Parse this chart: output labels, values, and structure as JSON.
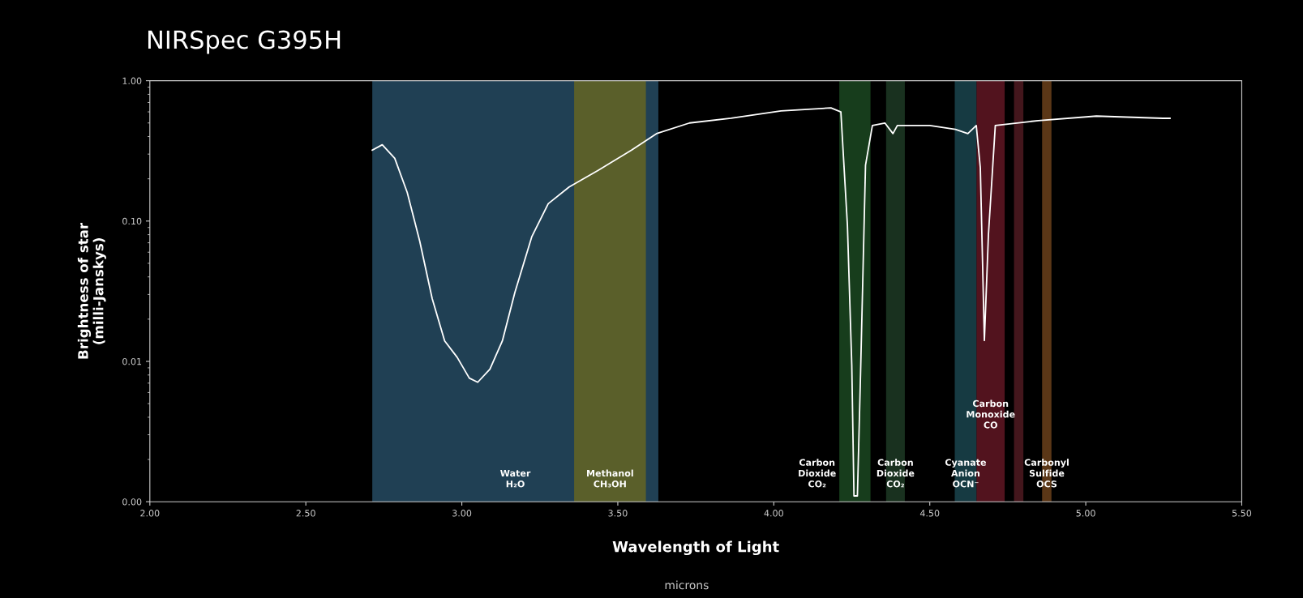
{
  "chart_data": {
    "type": "line",
    "title": "NIRSpec G395H",
    "xlabel": "Wavelength of Light",
    "ylabel": "Brightness of star\n(milli-Janskys)",
    "log": "y",
    "grid": false,
    "legend": false,
    "xlim": [
      2.0,
      5.5
    ],
    "xticks": [
      {
        "value": 2.0,
        "label": "2.00"
      },
      {
        "value": 2.5,
        "label": "2.50"
      },
      {
        "value": 3.0,
        "label": "3.00"
      },
      {
        "value": 3.5,
        "label": "3.50"
      },
      {
        "value": 4.0,
        "label": "4.00"
      },
      {
        "value": 4.5,
        "label": "4.50"
      },
      {
        "value": 5.0,
        "label": "5.00"
      },
      {
        "value": 5.5,
        "label": "5.50"
      }
    ],
    "ylim": [
      0.001,
      1.0
    ],
    "yticks": [
      {
        "value": 0.001,
        "label": "0.00"
      },
      {
        "value": 0.01,
        "label": "0.01"
      },
      {
        "value": 0.1,
        "label": "0.10"
      },
      {
        "value": 1.0,
        "label": "1.00"
      }
    ],
    "series": [
      {
        "color": "#ffffff",
        "x": [
          2.713,
          2.745,
          2.785,
          2.825,
          2.865,
          2.905,
          2.945,
          2.985,
          3.024,
          3.051,
          3.09,
          3.13,
          3.17,
          3.224,
          3.277,
          3.344,
          3.437,
          3.544,
          3.624,
          3.73,
          3.863,
          4.023,
          4.183,
          4.215,
          4.236,
          4.25,
          4.257,
          4.268,
          4.278,
          4.294,
          4.316,
          4.356,
          4.382,
          4.396,
          4.5,
          4.582,
          4.622,
          4.649,
          4.662,
          4.675,
          4.688,
          4.71,
          4.848,
          5.034,
          5.247,
          5.27
        ],
        "values": [
          0.32,
          0.35,
          0.28,
          0.16,
          0.072,
          0.028,
          0.014,
          0.0107,
          0.0076,
          0.0071,
          0.0088,
          0.014,
          0.031,
          0.077,
          0.133,
          0.175,
          0.23,
          0.32,
          0.42,
          0.5,
          0.54,
          0.61,
          0.64,
          0.6,
          0.093,
          0.0094,
          0.0011,
          0.0011,
          0.008,
          0.25,
          0.48,
          0.5,
          0.42,
          0.48,
          0.48,
          0.45,
          0.42,
          0.48,
          0.24,
          0.0141,
          0.08,
          0.48,
          0.52,
          0.56,
          0.54,
          0.54
        ]
      }
    ],
    "bands": [
      {
        "axis": "x",
        "from": 2.713,
        "to": 3.63,
        "color": "#2b5570",
        "label": "Water\nH₂O"
      },
      {
        "axis": "x",
        "from": 3.36,
        "to": 3.59,
        "color": "#6e6a1c",
        "label": "Methanol\nCH₃OH"
      },
      {
        "axis": "x",
        "from": 4.21,
        "to": 4.31,
        "color": "#1f5226",
        "label": "Carbon\nDioxide\nCO₂"
      },
      {
        "axis": "x",
        "from": 4.36,
        "to": 4.42,
        "color": "#22422a",
        "label": "Carbon\nDioxide\nCO₂"
      },
      {
        "axis": "x",
        "from": 4.58,
        "to": 4.65,
        "color": "#1d4d58",
        "label": "Cyanate\nAnion\nOCN⁻"
      },
      {
        "axis": "x",
        "from": 4.65,
        "to": 4.74,
        "color": "#6e1a28",
        "label": "Carbon\nMonoxide\nCO"
      },
      {
        "axis": "x",
        "from": 4.77,
        "to": 4.8,
        "color": "#5a1d26"
      },
      {
        "axis": "x",
        "from": 4.86,
        "to": 4.89,
        "color": "#7a4a1f",
        "label": "Carbonyl\nSulfide\nOCS"
      }
    ],
    "annotations": [
      "microns"
    ]
  }
}
